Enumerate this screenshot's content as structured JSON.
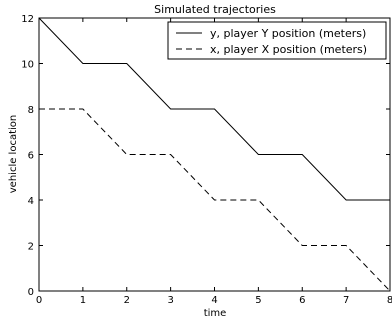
{
  "chart_data": {
    "type": "line",
    "title": "Simulated trajectories",
    "xlabel": "time",
    "ylabel": "vehicle location",
    "xlim": [
      0,
      8
    ],
    "ylim": [
      0,
      12
    ],
    "x_ticks": [
      0,
      1,
      2,
      3,
      4,
      5,
      6,
      7,
      8
    ],
    "y_ticks": [
      0,
      2,
      4,
      6,
      8,
      10,
      12
    ],
    "grid": false,
    "legend_position": "top-right",
    "series": [
      {
        "name": "y, player Y position (meters)",
        "style": "solid",
        "color": "#000000",
        "points": [
          [
            0,
            12
          ],
          [
            1,
            10
          ],
          [
            2,
            10
          ],
          [
            3,
            8
          ],
          [
            4,
            8
          ],
          [
            5,
            6
          ],
          [
            6,
            6
          ],
          [
            7,
            4
          ],
          [
            8,
            4
          ]
        ]
      },
      {
        "name": "x, player X position (meters)",
        "style": "dashed",
        "color": "#000000",
        "points": [
          [
            0,
            8
          ],
          [
            1,
            8
          ],
          [
            2,
            6
          ],
          [
            3,
            6
          ],
          [
            4,
            4
          ],
          [
            5,
            4
          ],
          [
            6,
            2
          ],
          [
            7,
            2
          ],
          [
            8,
            0
          ]
        ]
      }
    ]
  }
}
